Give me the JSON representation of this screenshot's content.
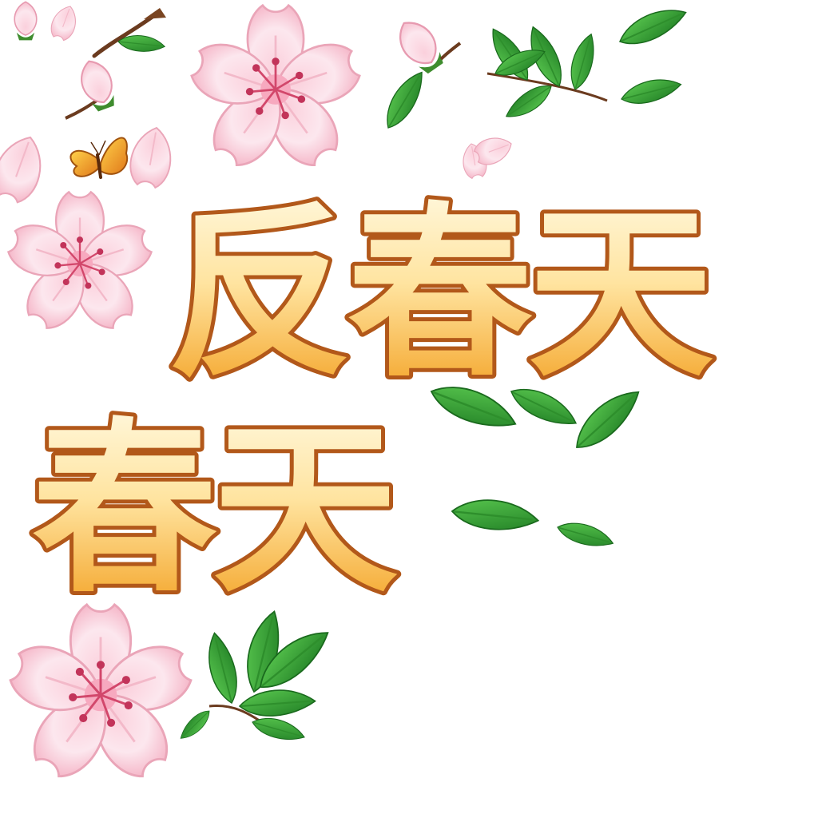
{
  "sprite_sheet": {
    "title_line_1": "反春天",
    "title_line_2": "春天",
    "colors": {
      "title_gradient_top": "#fff6d6",
      "title_gradient_bottom": "#f5a524",
      "title_outline": "#b2581a",
      "blossom_light": "#fde4ec",
      "blossom_mid": "#f4b3c6",
      "blossom_center": "#d2476b",
      "leaf_light": "#4fc04a",
      "leaf_dark": "#1f7d22",
      "branch": "#6b3b1f",
      "butterfly": "#f0a020"
    },
    "icons": [
      "cherry-blossom-icon",
      "cherry-bud-icon",
      "cherry-petal-icon",
      "leaf-icon",
      "leaf-branch-icon",
      "butterfly-icon"
    ]
  }
}
